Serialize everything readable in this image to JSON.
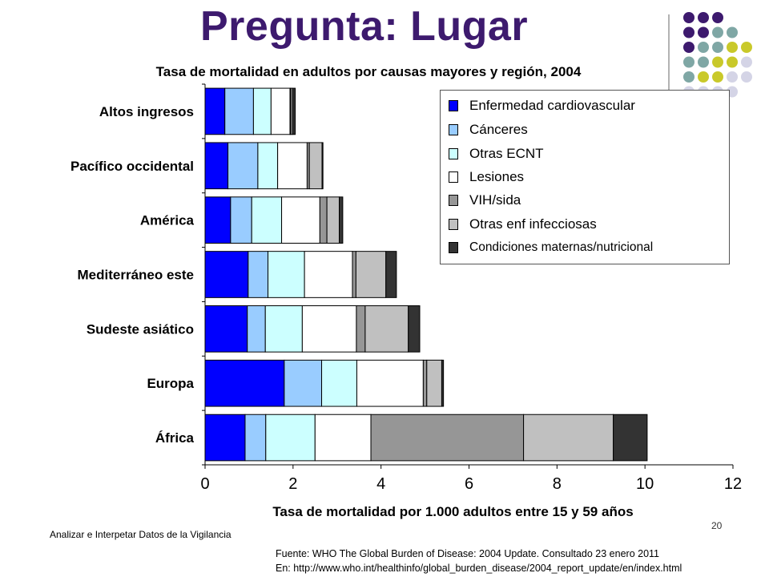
{
  "slide": {
    "title": "Pregunta: Lugar",
    "footer_left": "Analizar e Interpetar Datos de la Vigilancia",
    "page_number": "20",
    "source_line1": "Fuente: WHO The Global Burden of Disease: 2004 Update. Consultado 23 enero 2011",
    "source_line2": "En: http://www.who.int/healthinfo/global_burden_disease/2004_report_update/en/index.html"
  },
  "decor": {
    "dot_colors": [
      "#3d1a6e",
      "#7fa7a5",
      "#c9c92a",
      "#d4d4e6"
    ]
  },
  "chart_data": {
    "type": "bar",
    "orientation": "horizontal",
    "stacked": true,
    "title": "Tasa de mortalidad en adultos por causas mayores y región, 2004",
    "xlabel": "Tasa de mortalidad  por 1.000 adultos entre 15 y 59 años",
    "ylabel": "",
    "xlim": [
      0,
      12
    ],
    "xticks": [
      0,
      2,
      4,
      6,
      8,
      10,
      12
    ],
    "grid": false,
    "legend_position": "top-right",
    "categories": [
      "Altos ingresos",
      "Pacífico occidental",
      "América",
      "Mediterráneo este",
      "Sudeste asiático",
      "Europa",
      "África"
    ],
    "series": [
      {
        "name": "Enfermedad cardiovascular",
        "color": "#0000ff",
        "values": [
          0.45,
          0.52,
          0.58,
          0.98,
          0.96,
          1.8,
          0.91
        ]
      },
      {
        "name": "Cánceres",
        "color": "#99ccff",
        "values": [
          0.65,
          0.68,
          0.48,
          0.45,
          0.41,
          0.85,
          0.47
        ]
      },
      {
        "name": "Otras ECNT",
        "color": "#ccffff",
        "values": [
          0.4,
          0.45,
          0.68,
          0.83,
          0.84,
          0.8,
          1.12
        ]
      },
      {
        "name": "Lesiones",
        "color": "#ffffff",
        "values": [
          0.43,
          0.67,
          0.87,
          1.09,
          1.23,
          1.51,
          1.27
        ]
      },
      {
        "name": "VIH/sida",
        "color": "#969696",
        "values": [
          0.02,
          0.05,
          0.16,
          0.08,
          0.2,
          0.08,
          3.47
        ]
      },
      {
        "name": "Otras enf infecciosas",
        "color": "#c0c0c0",
        "values": [
          0.04,
          0.29,
          0.28,
          0.68,
          0.98,
          0.34,
          2.04
        ]
      },
      {
        "name": "Condiciones maternas/nutricional",
        "color": "#333333",
        "values": [
          0.06,
          0.02,
          0.08,
          0.24,
          0.26,
          0.04,
          0.77
        ]
      }
    ]
  }
}
